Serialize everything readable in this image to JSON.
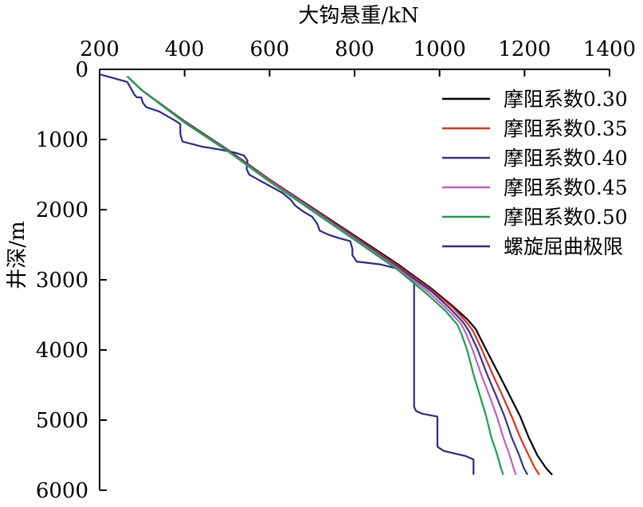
{
  "chart_data": {
    "type": "line",
    "xlabel": "大钩悬重/kN",
    "ylabel": "井深/m",
    "xlim": [
      200,
      1400
    ],
    "ylim": [
      0,
      6000
    ],
    "y_inverted": true,
    "x_axis_position": "top",
    "x_ticks": [
      200,
      400,
      600,
      800,
      1000,
      1200,
      1400
    ],
    "y_ticks": [
      0,
      1000,
      2000,
      3000,
      4000,
      5000,
      6000
    ],
    "grid": false,
    "legend_position": "top-right",
    "series": [
      {
        "name": "摩阻系数0.30",
        "color": "#000000",
        "points": [
          [
            265,
            100
          ],
          [
            300,
            300
          ],
          [
            400,
            740
          ],
          [
            500,
            1140
          ],
          [
            600,
            1570
          ],
          [
            700,
            1970
          ],
          [
            800,
            2370
          ],
          [
            900,
            2770
          ],
          [
            980,
            3120
          ],
          [
            1030,
            3370
          ],
          [
            1065,
            3560
          ],
          [
            1085,
            3700
          ],
          [
            1110,
            4000
          ],
          [
            1140,
            4350
          ],
          [
            1165,
            4650
          ],
          [
            1190,
            4950
          ],
          [
            1210,
            5250
          ],
          [
            1230,
            5500
          ],
          [
            1250,
            5680
          ],
          [
            1265,
            5780
          ]
        ]
      },
      {
        "name": "摩阻系数0.35",
        "color": "#e0301e",
        "points": [
          [
            265,
            100
          ],
          [
            300,
            300
          ],
          [
            400,
            745
          ],
          [
            500,
            1145
          ],
          [
            600,
            1575
          ],
          [
            700,
            1980
          ],
          [
            800,
            2385
          ],
          [
            900,
            2790
          ],
          [
            980,
            3140
          ],
          [
            1030,
            3390
          ],
          [
            1060,
            3580
          ],
          [
            1078,
            3720
          ],
          [
            1100,
            4000
          ],
          [
            1125,
            4350
          ],
          [
            1148,
            4650
          ],
          [
            1170,
            4950
          ],
          [
            1190,
            5250
          ],
          [
            1208,
            5480
          ],
          [
            1224,
            5680
          ],
          [
            1235,
            5780
          ]
        ]
      },
      {
        "name": "摩阻系数0.40",
        "color": "#36368a",
        "points": [
          [
            265,
            100
          ],
          [
            300,
            300
          ],
          [
            400,
            750
          ],
          [
            500,
            1150
          ],
          [
            600,
            1585
          ],
          [
            700,
            1990
          ],
          [
            800,
            2400
          ],
          [
            900,
            2810
          ],
          [
            980,
            3160
          ],
          [
            1025,
            3410
          ],
          [
            1055,
            3600
          ],
          [
            1070,
            3740
          ],
          [
            1090,
            4000
          ],
          [
            1112,
            4350
          ],
          [
            1133,
            4650
          ],
          [
            1153,
            4950
          ],
          [
            1170,
            5250
          ],
          [
            1186,
            5480
          ],
          [
            1198,
            5680
          ],
          [
            1207,
            5780
          ]
        ]
      },
      {
        "name": "摩阻系数0.45",
        "color": "#c060c0",
        "points": [
          [
            265,
            100
          ],
          [
            300,
            300
          ],
          [
            400,
            755
          ],
          [
            500,
            1155
          ],
          [
            600,
            1590
          ],
          [
            700,
            2000
          ],
          [
            800,
            2415
          ],
          [
            900,
            2830
          ],
          [
            975,
            3180
          ],
          [
            1020,
            3430
          ],
          [
            1050,
            3620
          ],
          [
            1062,
            3760
          ],
          [
            1078,
            4000
          ],
          [
            1098,
            4350
          ],
          [
            1117,
            4650
          ],
          [
            1135,
            4950
          ],
          [
            1150,
            5250
          ],
          [
            1164,
            5480
          ],
          [
            1174,
            5680
          ],
          [
            1180,
            5780
          ]
        ]
      },
      {
        "name": "摩阻系数0.50",
        "color": "#1e9e4e",
        "points": [
          [
            265,
            100
          ],
          [
            300,
            300
          ],
          [
            400,
            760
          ],
          [
            500,
            1160
          ],
          [
            600,
            1600
          ],
          [
            700,
            2015
          ],
          [
            800,
            2430
          ],
          [
            900,
            2850
          ],
          [
            970,
            3200
          ],
          [
            1015,
            3450
          ],
          [
            1042,
            3640
          ],
          [
            1052,
            3780
          ],
          [
            1065,
            4000
          ],
          [
            1080,
            4350
          ],
          [
            1095,
            4650
          ],
          [
            1110,
            4950
          ],
          [
            1122,
            5250
          ],
          [
            1135,
            5480
          ],
          [
            1144,
            5680
          ],
          [
            1150,
            5780
          ]
        ]
      },
      {
        "name": "螺旋屈曲极限",
        "color": "#2a2a8a",
        "points": [
          [
            200,
            70
          ],
          [
            230,
            120
          ],
          [
            265,
            180
          ],
          [
            282,
            360
          ],
          [
            288,
            400
          ],
          [
            298,
            400
          ],
          [
            302,
            480
          ],
          [
            310,
            540
          ],
          [
            340,
            600
          ],
          [
            375,
            720
          ],
          [
            390,
            780
          ],
          [
            390,
            920
          ],
          [
            395,
            1030
          ],
          [
            440,
            1100
          ],
          [
            480,
            1140
          ],
          [
            520,
            1190
          ],
          [
            540,
            1230
          ],
          [
            548,
            1300
          ],
          [
            546,
            1420
          ],
          [
            552,
            1500
          ],
          [
            570,
            1560
          ],
          [
            600,
            1660
          ],
          [
            630,
            1760
          ],
          [
            650,
            1860
          ],
          [
            660,
            1940
          ],
          [
            680,
            2030
          ],
          [
            700,
            2100
          ],
          [
            712,
            2200
          ],
          [
            718,
            2300
          ],
          [
            740,
            2360
          ],
          [
            760,
            2400
          ],
          [
            790,
            2450
          ],
          [
            795,
            2560
          ],
          [
            795,
            2650
          ],
          [
            805,
            2740
          ],
          [
            860,
            2780
          ],
          [
            900,
            2840
          ],
          [
            925,
            2930
          ],
          [
            940,
            3020
          ],
          [
            940,
            3120
          ],
          [
            940,
            3800
          ],
          [
            940,
            4400
          ],
          [
            940,
            4810
          ],
          [
            945,
            4870
          ],
          [
            960,
            4910
          ],
          [
            995,
            4950
          ],
          [
            995,
            5100
          ],
          [
            995,
            5380
          ],
          [
            1010,
            5440
          ],
          [
            1060,
            5510
          ],
          [
            1080,
            5560
          ],
          [
            1080,
            5650
          ],
          [
            1080,
            5780
          ]
        ]
      }
    ]
  }
}
